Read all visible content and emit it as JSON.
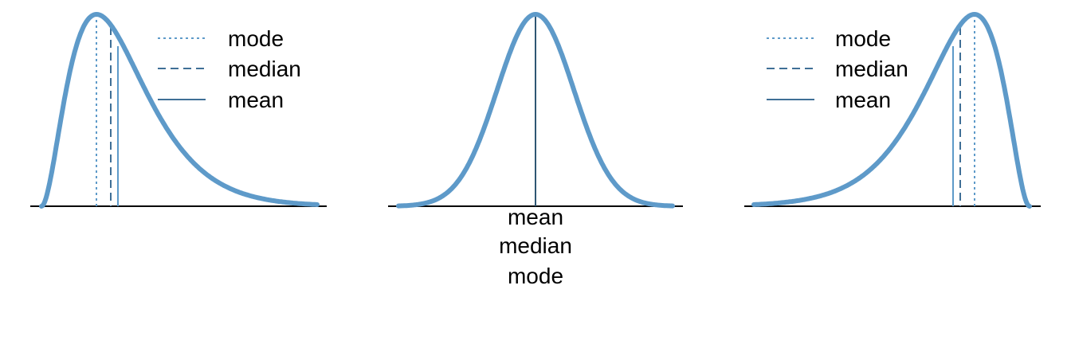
{
  "colors": {
    "curve": "#5e9ac9",
    "mode_line": "#5e9ac9",
    "median_line": "#3f6f96",
    "mean_line": "#3f6f96",
    "center_line": "#2f5673",
    "axis": "#000000"
  },
  "legend": {
    "items": [
      {
        "label": "mode",
        "style": "dotted"
      },
      {
        "label": "median",
        "style": "dashed"
      },
      {
        "label": "mean",
        "style": "solid"
      }
    ]
  },
  "panels": [
    {
      "shape": "right-skewed",
      "order": [
        "mode",
        "median",
        "mean"
      ],
      "legend_shown": true
    },
    {
      "shape": "symmetric",
      "order": [
        "mean",
        "median",
        "mode"
      ],
      "legend_shown": false
    },
    {
      "shape": "left-skewed",
      "order": [
        "mean",
        "median",
        "mode"
      ],
      "legend_shown": true
    }
  ],
  "center_labels": {
    "mean": "mean",
    "median": "median",
    "mode": "mode"
  }
}
